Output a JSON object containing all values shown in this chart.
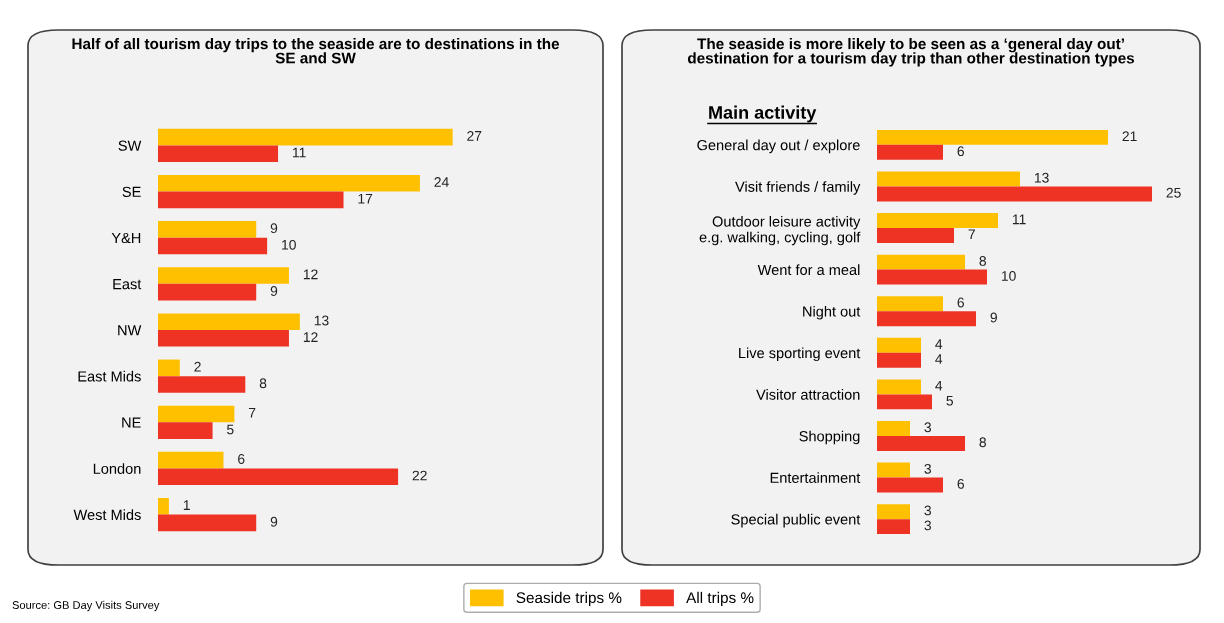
{
  "chart_data": [
    {
      "type": "bar",
      "orientation": "horizontal",
      "title": "Half of all tourism day trips to the seaside are to destinations in the SE and SW",
      "categories": [
        "SW",
        "SE",
        "Y&H",
        "East",
        "NW",
        "East Mids",
        "NE",
        "London",
        "West Mids"
      ],
      "series": [
        {
          "name": "Seaside trips %",
          "color": "#ffc000",
          "values": [
            27,
            24,
            9,
            12,
            13,
            2,
            7,
            6,
            1
          ]
        },
        {
          "name": "All trips %",
          "color": "#ee3224",
          "values": [
            11,
            17,
            10,
            9,
            12,
            8,
            5,
            22,
            9
          ]
        }
      ],
      "data_labels": true,
      "legend": "bottom",
      "annotations": [
        "Source: GB Day Visits Survey"
      ]
    },
    {
      "type": "bar",
      "orientation": "horizontal",
      "title": "The seaside is more likely to be seen as a ‘general day out’ destination for a tourism day trip than other destination types",
      "categories": [
        "General day out / explore",
        "Visit friends / family",
        "Outdoor leisure activity\ne.g. walking, cycling, golf",
        "Went for a meal",
        "Night out",
        "Live sporting event",
        "Visitor attraction",
        "Shopping",
        "Entertainment",
        "Special public event"
      ],
      "series": [
        {
          "name": "Seaside trips %",
          "color": "#ffc000",
          "values": [
            21,
            13,
            11,
            8,
            6,
            4,
            4,
            3,
            3,
            3
          ]
        },
        {
          "name": "All trips %",
          "color": "#ee3224",
          "values": [
            6,
            25,
            7,
            10,
            9,
            4,
            5,
            8,
            6,
            3
          ]
        }
      ],
      "data_labels": true,
      "legend": "bottom",
      "annotations": [
        "Main activity"
      ]
    }
  ]
}
